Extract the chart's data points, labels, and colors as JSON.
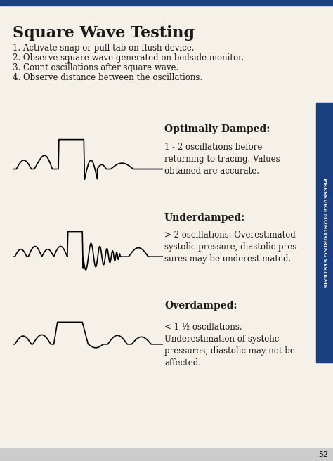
{
  "title": "Square Wave Testing",
  "instructions": [
    "1. Activate snap or pull tab on flush device.",
    "2. Observe square wave generated on bedside monitor.",
    "3. Count oscillations after square wave.",
    "4. Observe distance between the oscillations."
  ],
  "sections": [
    {
      "label": "Optimally Damped:",
      "description": "1 - 2 oscillations before\nreturning to tracing. Values\nobtained are accurate.",
      "type": "optimal"
    },
    {
      "label": "Underdamped:",
      "description": "> 2 oscillations. Overestimated\nsystolic pressure, diastolic pres-\nsures may be underestimated.",
      "type": "under"
    },
    {
      "label": "Overdamped:",
      "description": "< 1 ½ oscillations.\nUnderestimation of systolic\npressures, diastolic may not be\naffected.",
      "type": "over"
    }
  ],
  "sidebar_text": "PRESSURE MONITORING SYSTEMS",
  "page_number": "52",
  "top_bar_color": "#1a4080",
  "sidebar_color": "#1a4080",
  "bg_color": "#f5f0e8",
  "text_color": "#1a1a1a",
  "title_fontsize": 16,
  "body_fontsize": 8.5,
  "label_fontsize": 10
}
